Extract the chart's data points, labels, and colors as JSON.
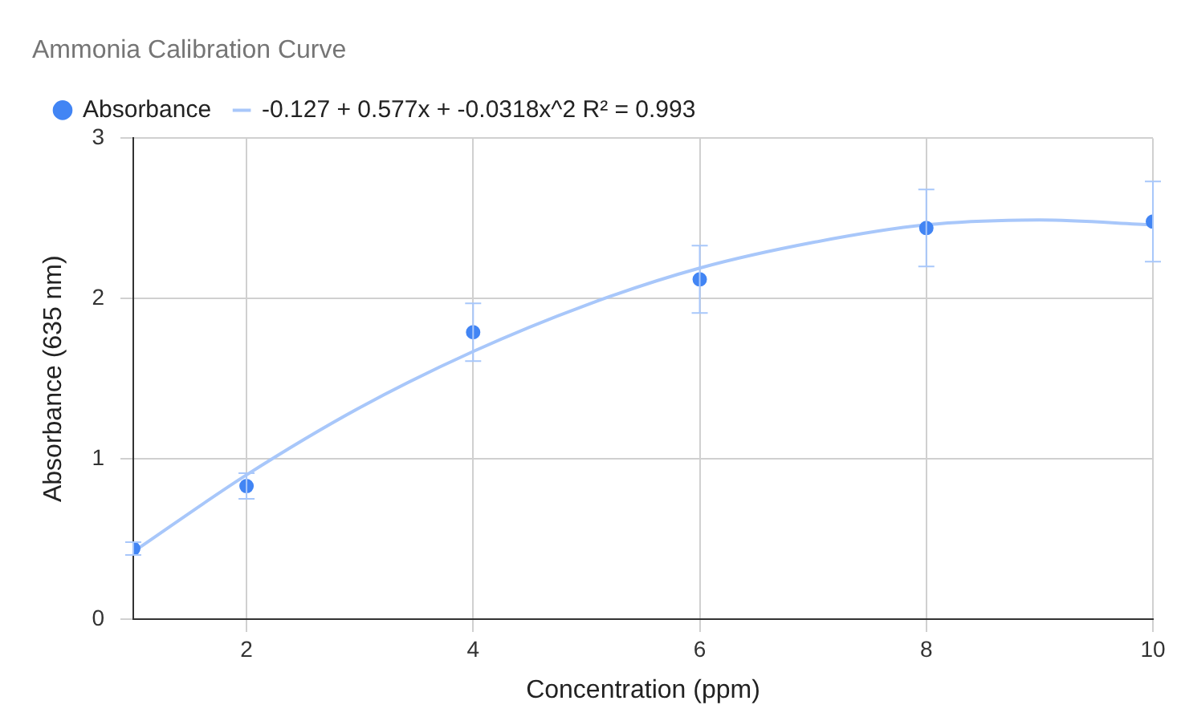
{
  "chart_data": {
    "type": "scatter",
    "title": "Ammonia Calibration Curve",
    "xlabel": "Concentration (ppm)",
    "ylabel": "Absorbance (635 nm)",
    "x": [
      1,
      2,
      4,
      6,
      8,
      10
    ],
    "series": [
      {
        "name": "Absorbance",
        "marker": "circle",
        "color": "#4285f4",
        "values": [
          0.44,
          0.83,
          1.79,
          2.12,
          2.44,
          2.48
        ],
        "errors": [
          0.04,
          0.08,
          0.18,
          0.21,
          0.24,
          0.25
        ]
      },
      {
        "name": "-0.127 + 0.577x + -0.0318x^2 R² = 0.993",
        "type": "line",
        "marker": "none",
        "color": "#a8c7fa",
        "x": [
          1,
          2,
          3,
          4,
          5,
          6,
          7,
          8,
          9,
          10
        ],
        "values": [
          0.42,
          0.9,
          1.32,
          1.67,
          1.96,
          2.19,
          2.35,
          2.46,
          2.49,
          2.46
        ]
      }
    ],
    "xlim": [
      1,
      10
    ],
    "xticks": [
      2,
      4,
      6,
      8,
      10
    ],
    "ylim": [
      0,
      3
    ],
    "yticks": [
      0,
      1,
      2,
      3
    ],
    "grid": true,
    "legend": "top left"
  }
}
